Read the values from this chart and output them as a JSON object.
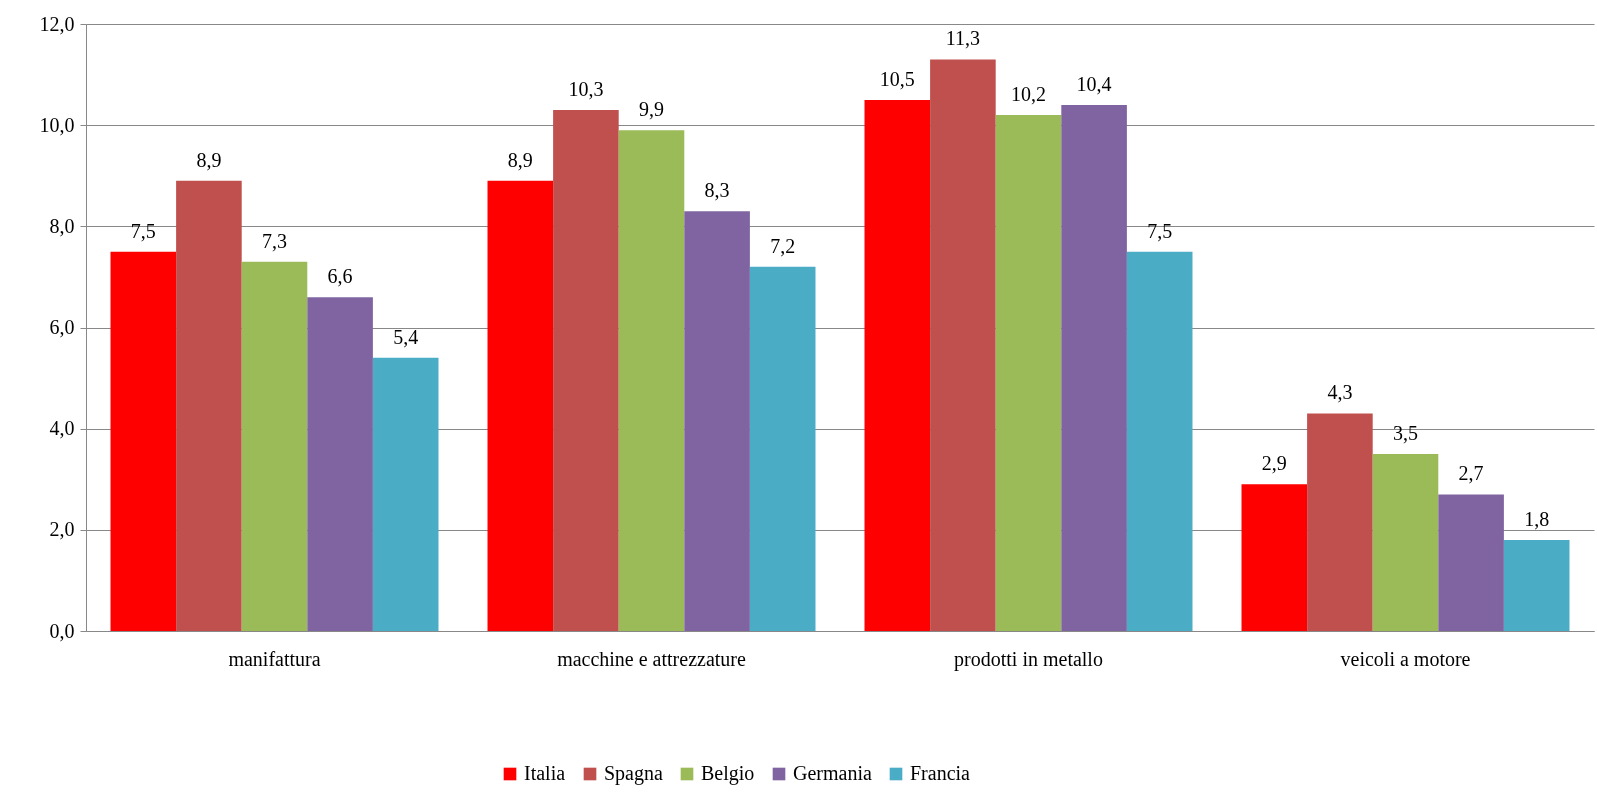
{
  "chart_data": {
    "type": "bar",
    "categories": [
      "manifattura",
      "macchine e attrezzature",
      "prodotti in metallo",
      "veicoli a motore"
    ],
    "series": [
      {
        "name": "Italia",
        "color": "#ff0000",
        "values": [
          7.5,
          8.9,
          10.5,
          2.9
        ],
        "value_labels": [
          "7,5",
          "8,9",
          "10,5",
          "2,9"
        ]
      },
      {
        "name": "Spagna",
        "color": "#c0504d",
        "values": [
          8.9,
          10.3,
          11.3,
          4.3
        ],
        "value_labels": [
          "8,9",
          "10,3",
          "11,3",
          "4,3"
        ]
      },
      {
        "name": "Belgio",
        "color": "#9bbb59",
        "values": [
          7.3,
          9.9,
          10.2,
          3.5
        ],
        "value_labels": [
          "7,3",
          "9,9",
          "10,2",
          "3,5"
        ]
      },
      {
        "name": "Germania",
        "color": "#8064a2",
        "values": [
          6.6,
          8.3,
          10.4,
          2.7
        ],
        "value_labels": [
          "6,6",
          "8,3",
          "10,4",
          "2,7"
        ]
      },
      {
        "name": "Francia",
        "color": "#4bacc6",
        "values": [
          5.4,
          7.2,
          7.5,
          1.8
        ],
        "value_labels": [
          "5,4",
          "7,2",
          "7,5",
          "1,8"
        ]
      }
    ],
    "ylim": [
      0,
      12
    ],
    "yticks": [
      {
        "value": 0,
        "label": "0,0"
      },
      {
        "value": 2,
        "label": "2,0"
      },
      {
        "value": 4,
        "label": "4,0"
      },
      {
        "value": 6,
        "label": "6,0"
      },
      {
        "value": 8,
        "label": "8,0"
      },
      {
        "value": 10,
        "label": "10,0"
      },
      {
        "value": 12,
        "label": "12,0"
      }
    ],
    "grid": "y",
    "legend": "bottom"
  }
}
